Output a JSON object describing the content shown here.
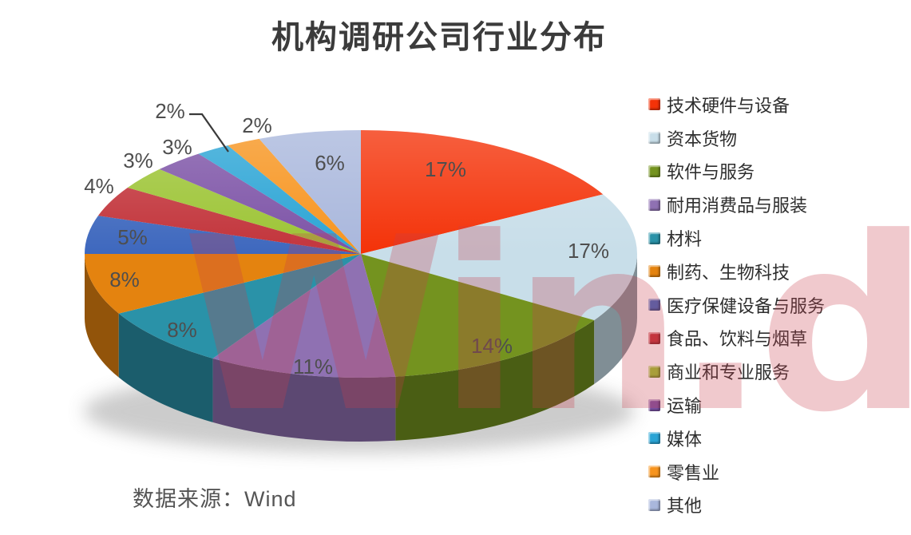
{
  "chart_data": {
    "type": "pie",
    "style": "3d",
    "title": "机构调研公司行业分布",
    "legend_position": "right",
    "label_format": "percent",
    "start_angle_deg": 0,
    "series": [
      {
        "name": "技术硬件与设备",
        "value": 17,
        "color": "#F43208",
        "label": "17%"
      },
      {
        "name": "资本货物",
        "value": 17,
        "color": "#C8DEE9",
        "label": "17%"
      },
      {
        "name": "软件与服务",
        "value": 14,
        "color": "#74931F",
        "label": "14%"
      },
      {
        "name": "耐用消费品与服装",
        "value": 11,
        "color": "#8F71B2",
        "label": "11%"
      },
      {
        "name": "材料",
        "value": 8,
        "color": "#2A92A8",
        "label": "8%"
      },
      {
        "name": "制药、生物科技",
        "value": 8,
        "color": "#E4830F",
        "label": "8%"
      },
      {
        "name": "医疗保健设备与服务",
        "value": 5,
        "color": "#3E68BE",
        "label": "5%"
      },
      {
        "name": "食品、饮料与烟草",
        "value": 4,
        "color": "#C2333A",
        "label": "4%"
      },
      {
        "name": "商业和专业服务",
        "value": 3,
        "color": "#9CC434",
        "label": "3%"
      },
      {
        "name": "运输",
        "value": 3,
        "color": "#7C52A6",
        "label": "3%"
      },
      {
        "name": "媒体",
        "value": 2,
        "color": "#2AA4D5",
        "label": "2%"
      },
      {
        "name": "零售业",
        "value": 2,
        "color": "#F7941E",
        "label": "2%"
      },
      {
        "name": "其他",
        "value": 6,
        "color": "#A9B7DC",
        "label": "6%"
      }
    ]
  },
  "watermark": {
    "text": "Win.d"
  },
  "source": {
    "label": "数据来源：Wind"
  },
  "label_text_color": "#4E4E4E"
}
